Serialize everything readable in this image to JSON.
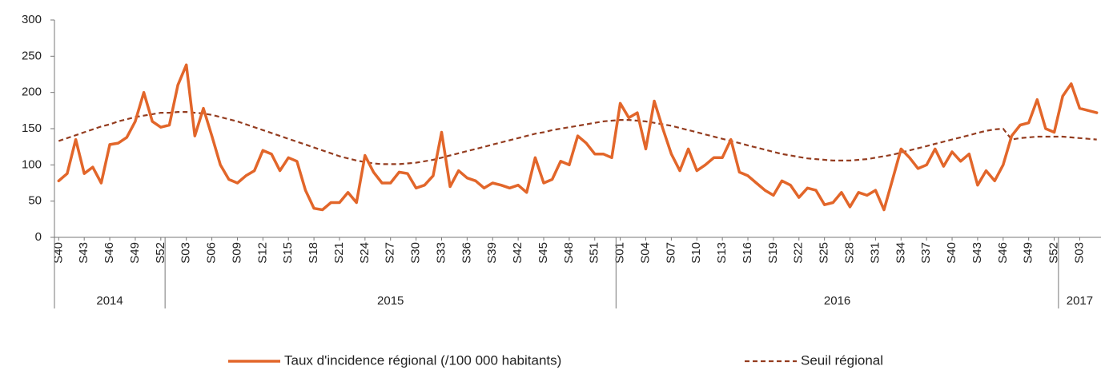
{
  "chart_data": {
    "type": "line",
    "categories": [
      "S40",
      null,
      null,
      "S43",
      null,
      null,
      "S46",
      null,
      null,
      "S49",
      null,
      null,
      "S52",
      null,
      null,
      "S03",
      null,
      null,
      "S06",
      null,
      null,
      "S09",
      null,
      null,
      "S12",
      null,
      null,
      "S15",
      null,
      null,
      "S18",
      null,
      null,
      "S21",
      null,
      null,
      "S24",
      null,
      null,
      "S27",
      null,
      null,
      "S30",
      null,
      null,
      "S33",
      null,
      null,
      "S36",
      null,
      null,
      "S39",
      null,
      null,
      "S42",
      null,
      null,
      "S45",
      null,
      null,
      "S48",
      null,
      null,
      "S51",
      null,
      null,
      "S01",
      null,
      null,
      "S04",
      null,
      null,
      "S07",
      null,
      null,
      "S10",
      null,
      null,
      "S13",
      null,
      null,
      "S16",
      null,
      null,
      "S19",
      null,
      null,
      "S22",
      null,
      null,
      "S25",
      null,
      null,
      "S28",
      null,
      null,
      "S31",
      null,
      null,
      "S34",
      null,
      null,
      "S37",
      null,
      null,
      "S40",
      null,
      null,
      "S43",
      null,
      null,
      "S46",
      null,
      null,
      "S49",
      null,
      null,
      "S52",
      null,
      null,
      "S03",
      null,
      null
    ],
    "groups": [
      {
        "label": "2014",
        "count": 13
      },
      {
        "label": "2015",
        "count": 53
      },
      {
        "label": "2016",
        "count": 52
      },
      {
        "label": "2017",
        "count": 5
      }
    ],
    "series": [
      {
        "name": "Taux d'incidence régional (/100 000 habitants)",
        "color": "#e2662a",
        "line_style": "solid",
        "values": [
          78,
          88,
          135,
          88,
          97,
          75,
          128,
          130,
          138,
          160,
          200,
          160,
          152,
          155,
          210,
          238,
          140,
          178,
          140,
          100,
          80,
          75,
          85,
          92,
          120,
          115,
          92,
          110,
          105,
          65,
          40,
          38,
          48,
          48,
          62,
          48,
          113,
          90,
          75,
          75,
          90,
          88,
          68,
          72,
          85,
          145,
          70,
          92,
          82,
          78,
          68,
          75,
          72,
          68,
          72,
          62,
          110,
          75,
          80,
          105,
          100,
          140,
          130,
          115,
          115,
          110,
          185,
          165,
          172,
          122,
          188,
          150,
          115,
          92,
          122,
          92,
          100,
          110,
          110,
          135,
          90,
          85,
          75,
          65,
          58,
          78,
          72,
          55,
          68,
          65,
          45,
          48,
          62,
          42,
          62,
          58,
          65,
          38,
          80,
          122,
          110,
          95,
          100,
          122,
          98,
          118,
          105,
          115,
          72,
          92,
          78,
          100,
          140,
          155,
          158,
          190,
          150,
          145,
          195,
          212,
          178,
          175,
          172
        ]
      },
      {
        "name": "Seuil régional",
        "color": "#943c1f",
        "line_style": "dashed",
        "values": [
          133,
          137,
          141,
          145,
          149,
          153,
          156,
          160,
          163,
          166,
          168,
          170,
          172,
          172,
          173,
          173,
          172,
          171,
          169,
          166,
          163,
          160,
          156,
          152,
          148,
          144,
          140,
          136,
          132,
          128,
          124,
          120,
          116,
          112,
          109,
          106,
          104,
          102,
          101,
          101,
          101,
          102,
          103,
          105,
          107,
          110,
          113,
          116,
          119,
          122,
          125,
          128,
          131,
          134,
          137,
          140,
          143,
          145,
          148,
          150,
          152,
          154,
          156,
          158,
          160,
          161,
          162,
          162,
          161,
          160,
          158,
          156,
          154,
          151,
          148,
          145,
          142,
          139,
          136,
          133,
          130,
          127,
          124,
          121,
          118,
          115,
          113,
          111,
          109,
          108,
          107,
          106,
          106,
          106,
          107,
          108,
          110,
          112,
          114,
          117,
          120,
          123,
          126,
          129,
          132,
          135,
          138,
          141,
          144,
          147,
          149,
          150,
          135,
          137,
          138,
          139,
          139,
          139,
          139,
          138,
          137,
          136,
          135
        ]
      }
    ],
    "ylim": [
      0,
      300
    ],
    "yticks": [
      0,
      50,
      100,
      150,
      200,
      250,
      300
    ],
    "legend": "bottom"
  }
}
